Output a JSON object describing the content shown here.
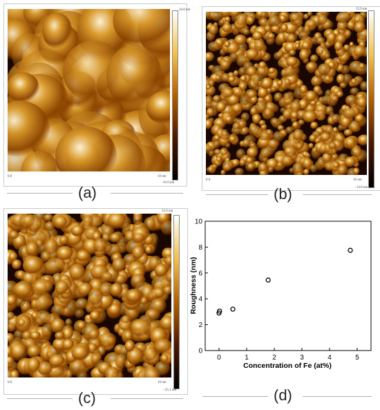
{
  "panels": {
    "a": {
      "label": "(a)",
      "scale_top": "24.0 nm",
      "scale_bottom": "−19.9 nm",
      "axis_origin": "0.0",
      "axis_end": "10 nm",
      "seed": 11,
      "grains": 140,
      "grain_size": 1.9
    },
    "b": {
      "label": "(b)",
      "scale_top": "15.9 nm",
      "scale_bottom": "−14.0 nm",
      "axis_origin": "0.0",
      "axis_end": "10 nm",
      "seed": 29,
      "grains": 700,
      "grain_size": 0.8
    },
    "c": {
      "label": "(c)",
      "scale_top": "22.6 nm",
      "scale_bottom": "−25.1 nm",
      "axis_origin": "0.0",
      "axis_end": "10 nm",
      "seed": 47,
      "grains": 520,
      "grain_size": 1.0
    },
    "d": {
      "label": "(d)"
    }
  },
  "colors": {
    "afm_dark": "#1a0700",
    "afm_mid": "#8a4300",
    "afm_bright": "#d99a2b",
    "afm_highlight": "#fff6dc",
    "marker": "#000000"
  },
  "chart_data": {
    "type": "scatter",
    "xlabel": "Concentration of Fe (at%)",
    "ylabel": "Roughness (nm)",
    "xlim": [
      -0.5,
      5.5
    ],
    "ylim": [
      0,
      10
    ],
    "xticks": [
      0,
      1,
      2,
      3,
      4,
      5
    ],
    "yticks": [
      0,
      2,
      4,
      6,
      8,
      10
    ],
    "grid": false,
    "marker": "open circle",
    "points": [
      {
        "x": 0.0,
        "y": 2.9
      },
      {
        "x": 0.02,
        "y": 3.05
      },
      {
        "x": 0.5,
        "y": 3.2
      },
      {
        "x": 1.78,
        "y": 5.45
      },
      {
        "x": 4.75,
        "y": 7.75
      }
    ]
  }
}
